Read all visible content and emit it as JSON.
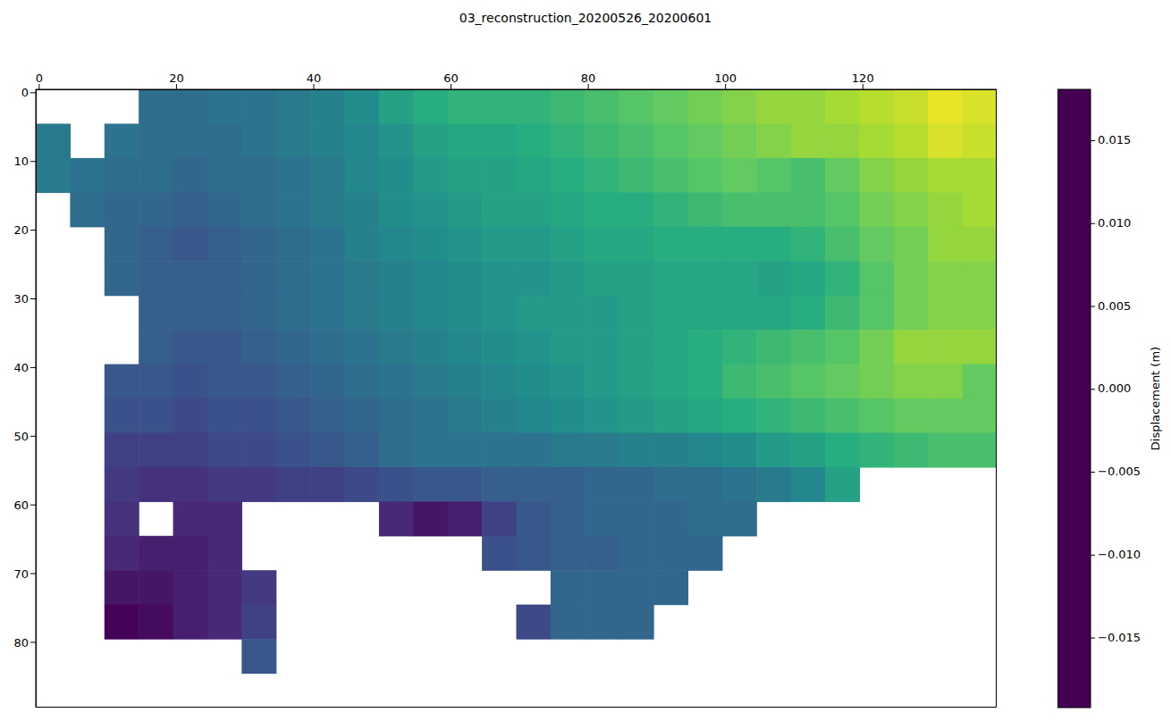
{
  "chart_data": {
    "type": "heatmap",
    "title": "03_reconstruction_20200526_20200601",
    "x": [
      2,
      7,
      12,
      17,
      22,
      27,
      32,
      37,
      42,
      47,
      52,
      57,
      62,
      67,
      72,
      77,
      82,
      87,
      92,
      97,
      102,
      107,
      112,
      117,
      122,
      127,
      132,
      137
    ],
    "y": [
      2,
      7,
      12,
      17,
      22,
      27,
      32,
      37,
      42,
      47,
      52,
      57,
      62,
      67,
      72,
      77,
      82,
      87
    ],
    "z": [
      [
        null,
        null,
        null,
        -0.006,
        -0.006,
        -0.005,
        -0.005,
        -0.004,
        -0.003,
        -0.001,
        0.002,
        0.004,
        0.005,
        0.005,
        0.005,
        0.006,
        0.007,
        0.008,
        0.009,
        0.01,
        0.011,
        0.012,
        0.012,
        0.013,
        0.014,
        0.015,
        0.017,
        0.016
      ],
      [
        -0.004,
        null,
        -0.005,
        -0.006,
        -0.006,
        -0.006,
        -0.005,
        -0.004,
        -0.003,
        -0.002,
        0,
        0.002,
        0.003,
        0.003,
        0.004,
        0.005,
        0.006,
        0.007,
        0.008,
        0.009,
        0.01,
        0.011,
        0.012,
        0.012,
        0.013,
        0.014,
        0.016,
        0.015
      ],
      [
        -0.004,
        -0.005,
        -0.006,
        -0.006,
        -0.007,
        -0.006,
        -0.006,
        -0.005,
        -0.004,
        -0.002,
        -0.001,
        0.001,
        0.002,
        0.002,
        0.003,
        0.004,
        0.005,
        0.006,
        0.007,
        0.008,
        0.009,
        0.008,
        0.007,
        0.009,
        0.011,
        0.012,
        0.013,
        0.013
      ],
      [
        null,
        -0.006,
        -0.007,
        -0.007,
        -0.008,
        -0.007,
        -0.006,
        -0.005,
        -0.004,
        -0.003,
        -0.001,
        0,
        0.001,
        0.002,
        0.002,
        0.003,
        0.004,
        0.004,
        0.005,
        0.006,
        0.007,
        0.007,
        0.007,
        0.008,
        0.01,
        0.011,
        0.012,
        0.013
      ],
      [
        null,
        null,
        -0.007,
        -0.008,
        -0.009,
        -0.008,
        -0.007,
        -0.006,
        -0.005,
        -0.003,
        -0.002,
        -0.001,
        0,
        0.001,
        0.001,
        0.002,
        0.003,
        0.003,
        0.004,
        0.004,
        0.004,
        0.004,
        0.005,
        0.007,
        0.009,
        0.01,
        0.012,
        0.012
      ],
      [
        null,
        null,
        -0.007,
        -0.008,
        -0.008,
        -0.008,
        -0.007,
        -0.006,
        -0.005,
        -0.004,
        -0.003,
        -0.002,
        -0.001,
        0,
        0,
        0.001,
        0.002,
        0.002,
        0.003,
        0.003,
        0.003,
        0.002,
        0.003,
        0.005,
        0.008,
        0.01,
        0.011,
        0.011
      ],
      [
        null,
        null,
        null,
        -0.008,
        -0.008,
        -0.008,
        -0.007,
        -0.006,
        -0.005,
        -0.004,
        -0.003,
        -0.002,
        -0.001,
        0,
        0.001,
        0.001,
        0.001,
        0.002,
        0.003,
        0.003,
        0.003,
        0.003,
        0.004,
        0.006,
        0.008,
        0.01,
        0.011,
        0.011
      ],
      [
        null,
        null,
        null,
        -0.008,
        -0.009,
        -0.009,
        -0.008,
        -0.007,
        -0.006,
        -0.005,
        -0.004,
        -0.003,
        -0.002,
        -0.001,
        0,
        0.001,
        0.001,
        0.002,
        0.003,
        0.004,
        0.005,
        0.006,
        0.007,
        0.008,
        0.01,
        0.012,
        0.012,
        0.012
      ],
      [
        null,
        null,
        -0.009,
        -0.009,
        -0.01,
        -0.009,
        -0.009,
        -0.008,
        -0.007,
        -0.006,
        -0.005,
        -0.004,
        -0.003,
        -0.002,
        -0.001,
        0,
        0.001,
        0.002,
        0.003,
        0.004,
        0.006,
        0.007,
        0.008,
        0.009,
        0.01,
        0.011,
        0.011,
        0.009
      ],
      [
        null,
        null,
        -0.01,
        -0.01,
        -0.011,
        -0.01,
        -0.01,
        -0.009,
        -0.008,
        -0.007,
        -0.006,
        -0.005,
        -0.004,
        -0.003,
        -0.002,
        -0.001,
        0,
        0.001,
        0.002,
        0.003,
        0.004,
        0.005,
        0.006,
        0.007,
        0.008,
        0.009,
        0.009,
        0.009
      ],
      [
        null,
        null,
        -0.012,
        -0.012,
        -0.012,
        -0.011,
        -0.011,
        -0.01,
        -0.009,
        -0.008,
        -0.006,
        -0.005,
        -0.005,
        -0.005,
        -0.005,
        -0.004,
        -0.004,
        -0.003,
        -0.003,
        -0.002,
        -0.001,
        0.001,
        0.002,
        0.004,
        0.005,
        0.006,
        0.007,
        0.007
      ],
      [
        null,
        null,
        -0.013,
        -0.014,
        -0.014,
        -0.013,
        -0.013,
        -0.012,
        -0.012,
        -0.011,
        -0.01,
        -0.009,
        -0.009,
        -0.008,
        -0.008,
        -0.008,
        -0.007,
        -0.007,
        -0.006,
        -0.006,
        -0.005,
        -0.004,
        -0.002,
        0.002,
        null,
        null,
        null,
        null
      ],
      [
        null,
        null,
        -0.014,
        null,
        -0.015,
        -0.015,
        null,
        null,
        null,
        null,
        -0.015,
        -0.017,
        -0.016,
        -0.012,
        -0.009,
        -0.008,
        -0.007,
        -0.007,
        -0.007,
        -0.006,
        -0.006,
        null,
        null,
        null,
        null,
        null,
        null,
        null
      ],
      [
        null,
        null,
        -0.015,
        -0.016,
        -0.016,
        -0.015,
        null,
        null,
        null,
        null,
        null,
        null,
        null,
        -0.01,
        -0.009,
        -0.008,
        -0.008,
        -0.007,
        -0.007,
        -0.007,
        null,
        null,
        null,
        null,
        null,
        null,
        null,
        null
      ],
      [
        null,
        null,
        -0.017,
        -0.017,
        -0.016,
        -0.015,
        -0.013,
        null,
        null,
        null,
        null,
        null,
        null,
        null,
        null,
        -0.007,
        -0.007,
        -0.007,
        -0.007,
        null,
        null,
        null,
        null,
        null,
        null,
        null,
        null,
        null
      ],
      [
        null,
        null,
        -0.019,
        -0.018,
        -0.016,
        -0.015,
        -0.012,
        null,
        null,
        null,
        null,
        null,
        null,
        null,
        -0.011,
        -0.007,
        -0.007,
        -0.007,
        null,
        null,
        null,
        null,
        null,
        null,
        null,
        null,
        null,
        null
      ],
      [
        null,
        null,
        null,
        null,
        null,
        null,
        -0.009,
        null,
        null,
        null,
        null,
        null,
        null,
        null,
        null,
        null,
        null,
        null,
        null,
        null,
        null,
        null,
        null,
        null,
        null,
        null,
        null,
        null
      ],
      [
        null,
        null,
        null,
        null,
        null,
        null,
        null,
        null,
        null,
        null,
        null,
        null,
        null,
        null,
        null,
        null,
        null,
        null,
        null,
        null,
        null,
        null,
        null,
        null,
        null,
        null,
        null,
        null
      ]
    ],
    "xlim": [
      -0.5,
      139.5
    ],
    "ylim": [
      89.5,
      -0.5
    ],
    "xticks": [
      0,
      20,
      40,
      60,
      80,
      100,
      120
    ],
    "yticks": [
      0,
      10,
      20,
      30,
      40,
      50,
      60,
      70,
      80
    ],
    "colorbar": {
      "label": "Displacement (m)",
      "range": [
        -0.0192,
        0.0181
      ],
      "ticks": [
        {
          "value": -0.015,
          "label": "−0.015"
        },
        {
          "value": -0.01,
          "label": "−0.010"
        },
        {
          "value": -0.005,
          "label": "−0.005"
        },
        {
          "value": 0,
          "label": "0.000"
        },
        0.005,
        {
          "value": 0.01,
          "label": "0.010"
        },
        0.015
      ]
    }
  }
}
